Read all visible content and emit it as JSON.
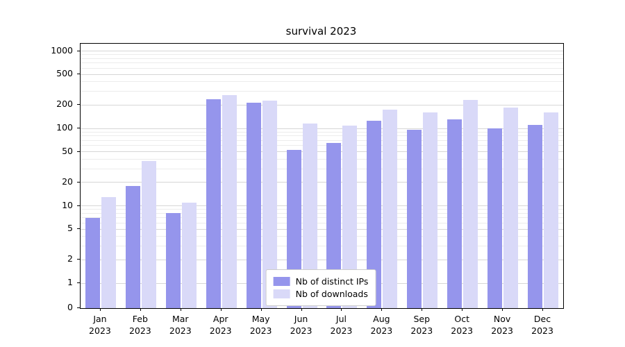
{
  "title": "survival 2023",
  "chart_data": {
    "type": "bar",
    "title": "survival 2023",
    "categories": [
      "Jan 2023",
      "Feb 2023",
      "Mar 2023",
      "Apr 2023",
      "May 2023",
      "Jun 2023",
      "Jul 2023",
      "Aug 2023",
      "Sep 2023",
      "Oct 2023",
      "Nov 2023",
      "Dec 2023"
    ],
    "series": [
      {
        "name": "Nb of distinct IPs",
        "color": "#9595ec",
        "values": [
          7,
          18,
          8,
          240,
          215,
          53,
          65,
          125,
          97,
          130,
          100,
          110
        ]
      },
      {
        "name": "Nb of downloads",
        "color": "#d9d9f8",
        "values": [
          13,
          38,
          11,
          270,
          230,
          115,
          108,
          175,
          160,
          235,
          185,
          162
        ]
      }
    ],
    "yscale": "symlog",
    "yticks": [
      0,
      1,
      2,
      5,
      10,
      20,
      50,
      100,
      200,
      500,
      1000
    ],
    "yminorticks": [
      3,
      4,
      6,
      7,
      8,
      9,
      30,
      40,
      60,
      70,
      80,
      90,
      300,
      400,
      600,
      700,
      800,
      900
    ],
    "ylim": [
      0,
      1200
    ],
    "grid": "horizontal-only",
    "legend_position": "lower center",
    "xlabel": "",
    "ylabel": ""
  }
}
